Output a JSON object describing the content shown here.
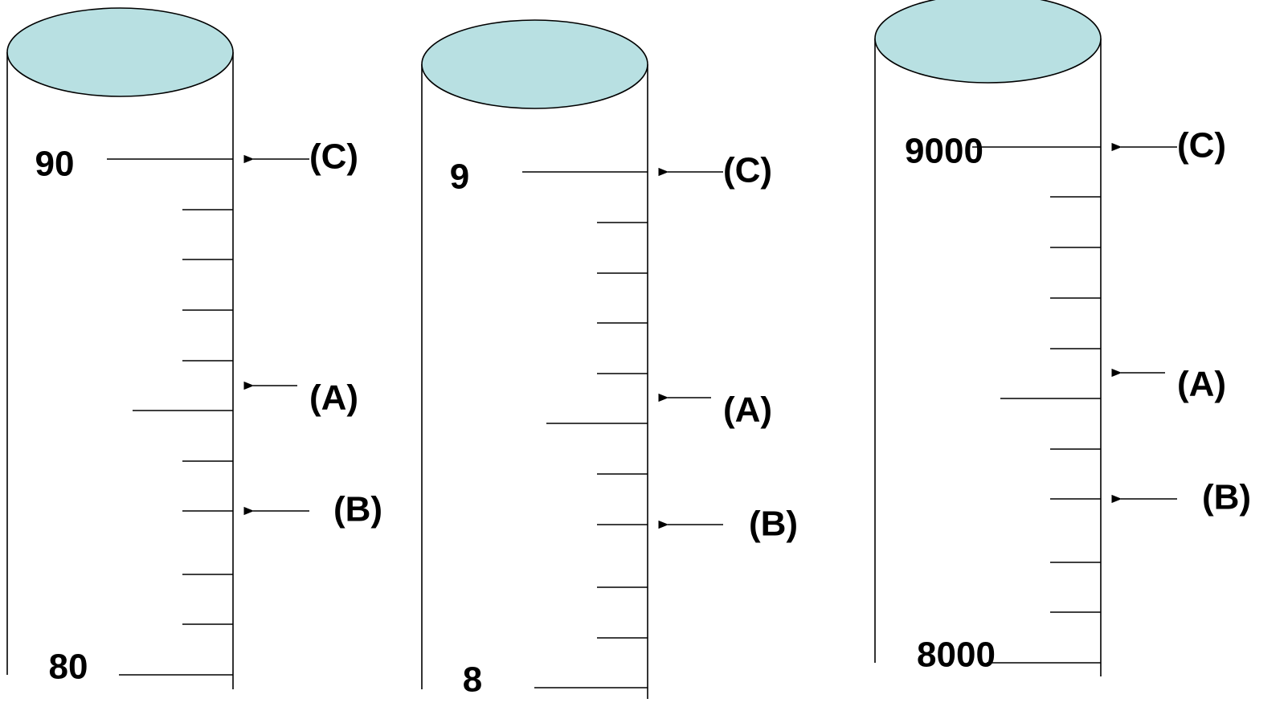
{
  "cylinders": [
    {
      "top_label": "90",
      "bottom_label": "80",
      "markers": [
        {
          "label": "(C)"
        },
        {
          "label": "(A)"
        },
        {
          "label": "(B)"
        }
      ]
    },
    {
      "top_label": "9",
      "bottom_label": "8",
      "markers": [
        {
          "label": "(C)"
        },
        {
          "label": "(A)"
        },
        {
          "label": "(B)"
        }
      ]
    },
    {
      "top_label": "9000",
      "bottom_label": "8000",
      "markers": [
        {
          "label": "(C)"
        },
        {
          "label": "(A)"
        },
        {
          "label": "(B)"
        }
      ]
    }
  ]
}
